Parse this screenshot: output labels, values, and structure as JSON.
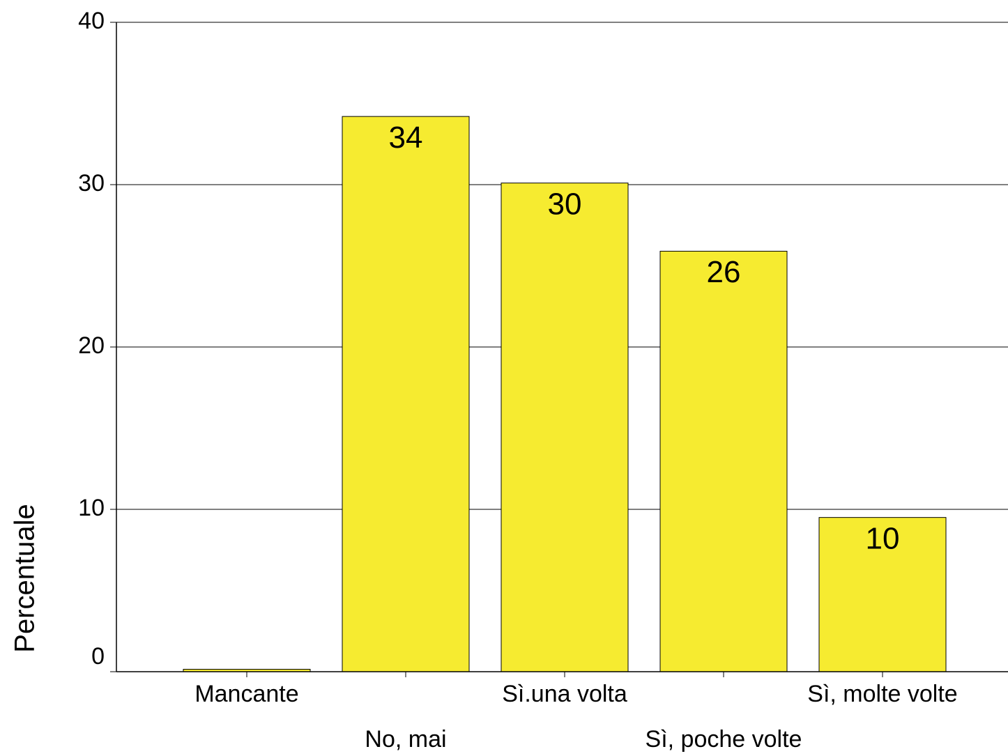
{
  "chart_data": {
    "type": "bar",
    "y_label": "Percentuale",
    "categories": [
      "Mancante",
      "No, mai",
      "Sì.una volta",
      "Sì, poche volte",
      "Sì, molte volte"
    ],
    "values": [
      0.15,
      34.2,
      30.1,
      25.9,
      9.5
    ],
    "value_labels": [
      null,
      "34",
      "30",
      "26",
      "10"
    ],
    "color": "#f6eb30",
    "ylim": [
      0,
      40
    ],
    "yticks": [
      0,
      10,
      20,
      30,
      40
    ],
    "grid": true
  }
}
